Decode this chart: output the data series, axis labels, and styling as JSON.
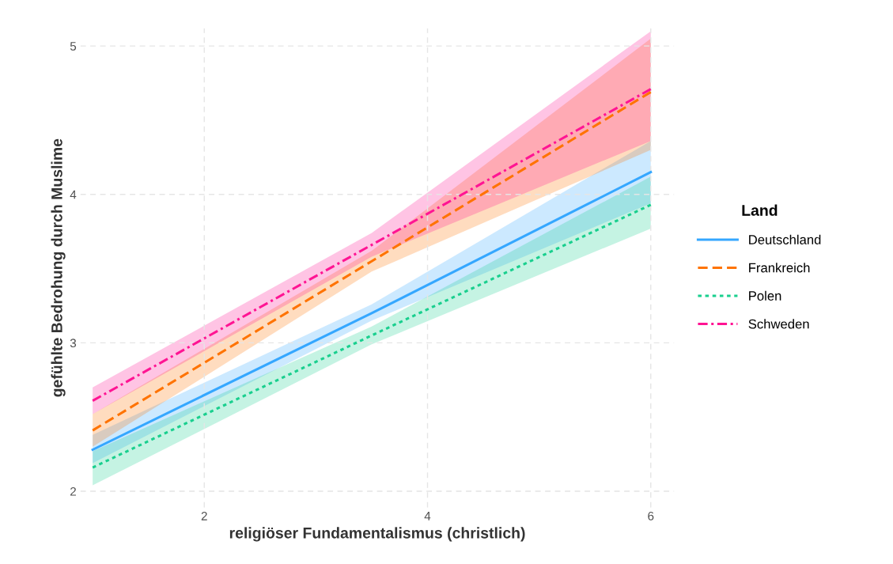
{
  "chart_data": {
    "type": "line",
    "xlabel": "religiöser Fundamentalismus (christlich)",
    "ylabel": "gefühlte Bedrohung durch Muslime",
    "legend_title": "Land",
    "x": [
      1,
      3.5,
      6
    ],
    "series": [
      {
        "name": "Deutschland",
        "color": "#35a7ff",
        "line_style": "solid",
        "values": [
          2.28,
          3.2,
          4.15
        ],
        "lower": [
          2.19,
          3.15,
          3.94
        ],
        "upper": [
          2.38,
          3.26,
          4.36
        ]
      },
      {
        "name": "Frankreich",
        "color": "#ff7300",
        "line_style": "dashed",
        "values": [
          2.41,
          3.55,
          4.69
        ],
        "lower": [
          2.3,
          3.48,
          4.3
        ],
        "upper": [
          2.52,
          3.62,
          5.05
        ]
      },
      {
        "name": "Polen",
        "color": "#19cf8e",
        "line_style": "dotted",
        "values": [
          2.16,
          3.05,
          3.93
        ],
        "lower": [
          2.04,
          2.99,
          3.77
        ],
        "upper": [
          2.27,
          3.11,
          4.12
        ]
      },
      {
        "name": "Schweden",
        "color": "#ff1493",
        "line_style": "dashdot",
        "values": [
          2.61,
          3.66,
          4.71
        ],
        "lower": [
          2.52,
          3.58,
          4.36
        ],
        "upper": [
          2.7,
          3.74,
          5.1
        ]
      }
    ],
    "xlim": [
      0.89,
      6.21
    ],
    "ylim": [
      1.89,
      5.12
    ],
    "xticks": [
      2,
      4,
      6
    ],
    "yticks": [
      2,
      3,
      4,
      5
    ],
    "grid": true,
    "legend": "right"
  }
}
